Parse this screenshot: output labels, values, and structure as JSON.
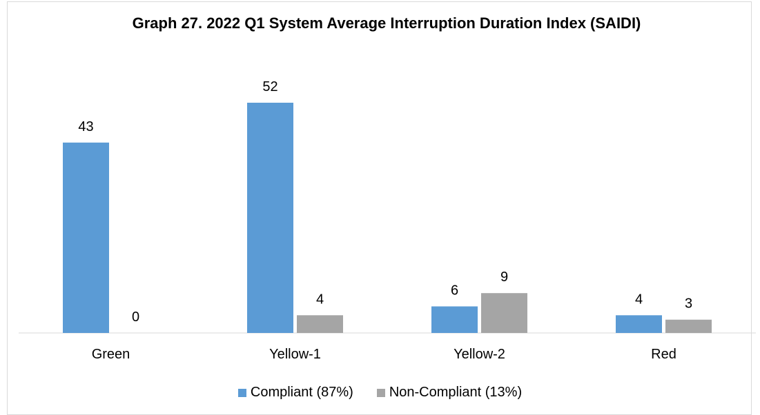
{
  "chart_data": {
    "type": "bar",
    "title": "Graph 27. 2022 Q1 System Average Interruption Duration Index (SAIDI)",
    "categories": [
      "Green",
      "Yellow-1",
      "Yellow-2",
      "Red"
    ],
    "series": [
      {
        "name": "Compliant (87%)",
        "color": "#5b9bd5",
        "values": [
          43,
          52,
          6,
          4
        ]
      },
      {
        "name": "Non-Compliant (13%)",
        "color": "#a5a5a5",
        "values": [
          0,
          4,
          9,
          3
        ]
      }
    ],
    "legend": "bottom"
  }
}
